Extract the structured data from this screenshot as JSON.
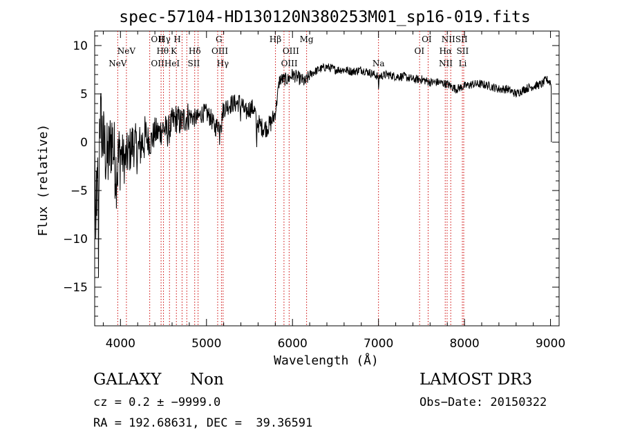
{
  "chart_data": {
    "type": "line",
    "title": "spec-57104-HD130120N380253M01_sp16-019.fits",
    "xlabel": "Wavelength (Å)",
    "ylabel": "Flux (relative)",
    "xlim": [
      3700,
      9100
    ],
    "ylim": [
      -19,
      11.5
    ],
    "xticks": [
      4000,
      5000,
      6000,
      7000,
      8000,
      9000
    ],
    "xtick_labels": [
      "4000",
      "5000",
      "6000",
      "7000",
      "8000",
      "9000"
    ],
    "yticks": [
      10,
      5,
      0,
      -5,
      -10,
      -15
    ],
    "ytick_labels": [
      "10",
      "5",
      "0",
      "−5",
      "−10",
      "−15"
    ],
    "grid": false,
    "series": [
      {
        "name": "spectrum",
        "color": "#000000",
        "anchors": [
          [
            3700,
            -1
          ],
          [
            3730,
            -6
          ],
          [
            3760,
            3
          ],
          [
            3800,
            0
          ],
          [
            3850,
            -2
          ],
          [
            3900,
            0.5
          ],
          [
            3950,
            -3
          ],
          [
            4000,
            -1
          ],
          [
            4050,
            -2
          ],
          [
            4100,
            -1
          ],
          [
            4150,
            0
          ],
          [
            4200,
            -1
          ],
          [
            4250,
            0
          ],
          [
            4300,
            0.5
          ],
          [
            4350,
            0
          ],
          [
            4400,
            1
          ],
          [
            4450,
            1
          ],
          [
            4500,
            1.5
          ],
          [
            4550,
            1
          ],
          [
            4600,
            2
          ],
          [
            4650,
            2.5
          ],
          [
            4700,
            2
          ],
          [
            4750,
            2.5
          ],
          [
            4800,
            2.8
          ],
          [
            4850,
            2.5
          ],
          [
            4900,
            2.5
          ],
          [
            4950,
            3
          ],
          [
            5000,
            3
          ],
          [
            5050,
            2.5
          ],
          [
            5100,
            1.5
          ],
          [
            5150,
            2
          ],
          [
            5200,
            3.5
          ],
          [
            5250,
            3.8
          ],
          [
            5300,
            4
          ],
          [
            5350,
            4
          ],
          [
            5400,
            4.2
          ],
          [
            5450,
            3
          ],
          [
            5500,
            3.5
          ],
          [
            5550,
            3.5
          ],
          [
            5600,
            2
          ],
          [
            5650,
            1.5
          ],
          [
            5700,
            1.5
          ],
          [
            5750,
            2
          ],
          [
            5800,
            3
          ],
          [
            5850,
            6.5
          ],
          [
            5900,
            6.5
          ],
          [
            5950,
            6.5
          ],
          [
            6000,
            7
          ],
          [
            6100,
            6.5
          ],
          [
            6150,
            6.2
          ],
          [
            6200,
            7
          ],
          [
            6300,
            7.5
          ],
          [
            6400,
            7.8
          ],
          [
            6500,
            7.5
          ],
          [
            6600,
            7.5
          ],
          [
            6700,
            7.3
          ],
          [
            6800,
            7.5
          ],
          [
            6900,
            7.2
          ],
          [
            7000,
            6.8
          ],
          [
            7100,
            7
          ],
          [
            7200,
            6.8
          ],
          [
            7300,
            6.8
          ],
          [
            7400,
            6.5
          ],
          [
            7500,
            6.5
          ],
          [
            7600,
            6.2
          ],
          [
            7700,
            6.2
          ],
          [
            7800,
            6
          ],
          [
            7900,
            5.5
          ],
          [
            8000,
            5.8
          ],
          [
            8100,
            6
          ],
          [
            8200,
            6
          ],
          [
            8300,
            5.8
          ],
          [
            8400,
            5.5
          ],
          [
            8500,
            5.5
          ],
          [
            8600,
            5
          ],
          [
            8700,
            5.5
          ],
          [
            8800,
            5.8
          ],
          [
            8900,
            6
          ],
          [
            8950,
            6.5
          ],
          [
            9000,
            6.2
          ],
          [
            9010,
            5.5
          ]
        ],
        "features": [
          {
            "x": 3745,
            "dy": -12.5
          },
          {
            "x": 3712,
            "dy": -11
          },
          {
            "x": 5582,
            "dy": -3.5
          },
          {
            "x": 5395,
            "dy": -1.5
          },
          {
            "x": 7000,
            "dy": -1.2
          },
          {
            "x": 5152,
            "dy": -1.5
          },
          {
            "x": 5175,
            "dy": -1.4
          }
        ]
      }
    ],
    "line_markers": {
      "color": "#cc0000",
      "wavelengths": [
        3968,
        4069,
        4340,
        4472,
        4500,
        4570,
        4650,
        4716,
        4771,
        4863,
        4902,
        5130,
        5174,
        5193,
        5802,
        5901,
        5961,
        6164,
        7000,
        7478,
        7577,
        7776,
        7798,
        7840,
        7975,
        7991
      ]
    },
    "line_labels": [
      {
        "text": "NeV",
        "wl": 4069,
        "row": 1
      },
      {
        "text": "NeV",
        "wl": 3968,
        "row": 2
      },
      {
        "text": "OII",
        "wl": 4432,
        "row": 0
      },
      {
        "text": "Hγ",
        "wl": 4512,
        "row": 0
      },
      {
        "text": "H",
        "wl": 4660,
        "row": 0
      },
      {
        "text": "G",
        "wl": 5145,
        "row": 0
      },
      {
        "text": "Hβ",
        "wl": 5801,
        "row": 0
      },
      {
        "text": "Mg",
        "wl": 6164,
        "row": 0
      },
      {
        "text": "OI",
        "wl": 7560,
        "row": 0
      },
      {
        "text": "NII",
        "wl": 7812,
        "row": 0
      },
      {
        "text": "SII",
        "wl": 7965,
        "row": 0
      },
      {
        "text": "Hθ",
        "wl": 4490,
        "row": 1
      },
      {
        "text": "K",
        "wl": 4620,
        "row": 1
      },
      {
        "text": "Hδ",
        "wl": 4863,
        "row": 1
      },
      {
        "text": "OIII",
        "wl": 5155,
        "row": 1
      },
      {
        "text": "OIII",
        "wl": 5981,
        "row": 1
      },
      {
        "text": "OI",
        "wl": 7475,
        "row": 1
      },
      {
        "text": "Hα",
        "wl": 7780,
        "row": 1
      },
      {
        "text": "SII",
        "wl": 7978,
        "row": 1
      },
      {
        "text": "OII",
        "wl": 4432,
        "row": 2
      },
      {
        "text": "HeI",
        "wl": 4600,
        "row": 2
      },
      {
        "text": "SII",
        "wl": 4852,
        "row": 2
      },
      {
        "text": "Hγ",
        "wl": 5190,
        "row": 2
      },
      {
        "text": "OIII",
        "wl": 5963,
        "row": 2
      },
      {
        "text": "Na",
        "wl": 7000,
        "row": 2
      },
      {
        "text": "NII",
        "wl": 7782,
        "row": 2
      },
      {
        "text": "Li",
        "wl": 7979,
        "row": 2
      }
    ]
  },
  "info": {
    "classification": "GALAXY",
    "subclass": "Non",
    "survey": "LAMOST DR3",
    "cz": "cz = 0.2 ± −9999.0",
    "obs_date": "Obs−Date: 20150322",
    "coords": "RA = 192.68631, DEC =  39.36591"
  }
}
